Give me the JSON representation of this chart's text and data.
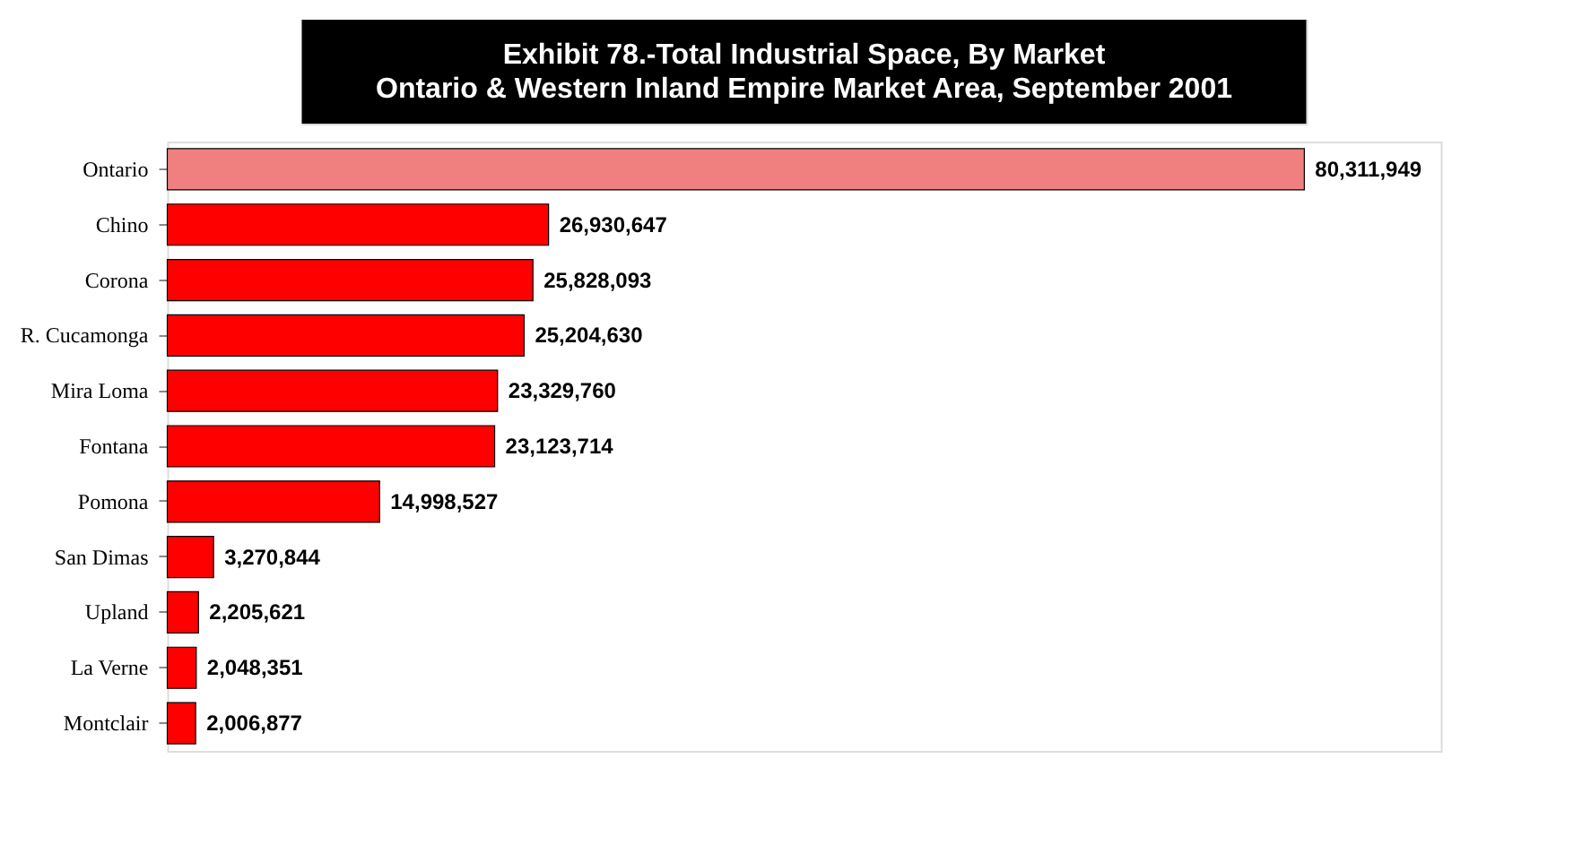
{
  "chart_data": {
    "type": "bar",
    "orientation": "horizontal",
    "title": "Exhibit 78.-Total Industrial Space, By Market\nOntario & Western Inland Empire Market Area, September 2001",
    "categories": [
      "Ontario",
      "Chino",
      "Corona",
      "R. Cucamonga",
      "Mira Loma",
      "Fontana",
      "Pomona",
      "San Dimas",
      "Upland",
      "La Verne",
      "Montclair"
    ],
    "values": [
      80311949,
      26930647,
      25828093,
      25204630,
      23329760,
      23123714,
      14998527,
      3270844,
      2205621,
      2048351,
      2006877
    ],
    "colors": [
      "#f08080",
      "#ff0000",
      "#ff0000",
      "#ff0000",
      "#ff0000",
      "#ff0000",
      "#ff0000",
      "#ff0000",
      "#ff0000",
      "#ff0000",
      "#ff0000"
    ],
    "value_labels": [
      "80,311,949",
      "26,930,647",
      "25,828,093",
      "25,204,630",
      "23,329,760",
      "23,123,714",
      "14,998,527",
      "3,270,844",
      "2,205,621",
      "2,048,351",
      "2,006,877"
    ],
    "grid": false
  }
}
